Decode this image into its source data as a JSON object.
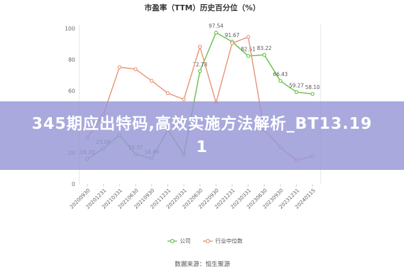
{
  "chart_data": {
    "type": "line",
    "title": "市盈率（TTM）历史百分位（%）",
    "categories": [
      "20200930",
      "20201231",
      "20210331",
      "20210630",
      "20210930",
      "20211231",
      "20220331",
      "20220630",
      "20220930",
      "20221231",
      "20230331",
      "20230630",
      "20230930",
      "20231231",
      "20240115"
    ],
    "series": [
      {
        "name": "公司",
        "color": "#6cc24a",
        "values": [
          16.2,
          23.0,
          31.7,
          19.37,
          16.49,
          35,
          19,
          72.78,
          97.54,
          91.67,
          82.51,
          83.22,
          66.43,
          59.27,
          58.1
        ],
        "value_labels": [
          "16.20",
          "23.00",
          null,
          "19.37",
          "16.49",
          null,
          null,
          "72.78",
          "97.54",
          "91.67",
          "82.51",
          "83.22",
          "66.43",
          "59.27",
          "58.10"
        ]
      },
      {
        "name": "行业中位数",
        "color": "#e8967a",
        "values": [
          30,
          45,
          75.3,
          74,
          66.5,
          58.6,
          54.6,
          88.5,
          52.4,
          90.7,
          94.7,
          35,
          23.8,
          15.4,
          18
        ]
      }
    ],
    "ylim": [
      0,
      100
    ],
    "yticks": [
      0,
      20,
      40,
      60,
      80,
      100
    ],
    "grid": false,
    "source": "数据来源：恒生聚源"
  },
  "overlay": {
    "text": "345期应出特码,高效实施方法解析_BT13.191"
  }
}
